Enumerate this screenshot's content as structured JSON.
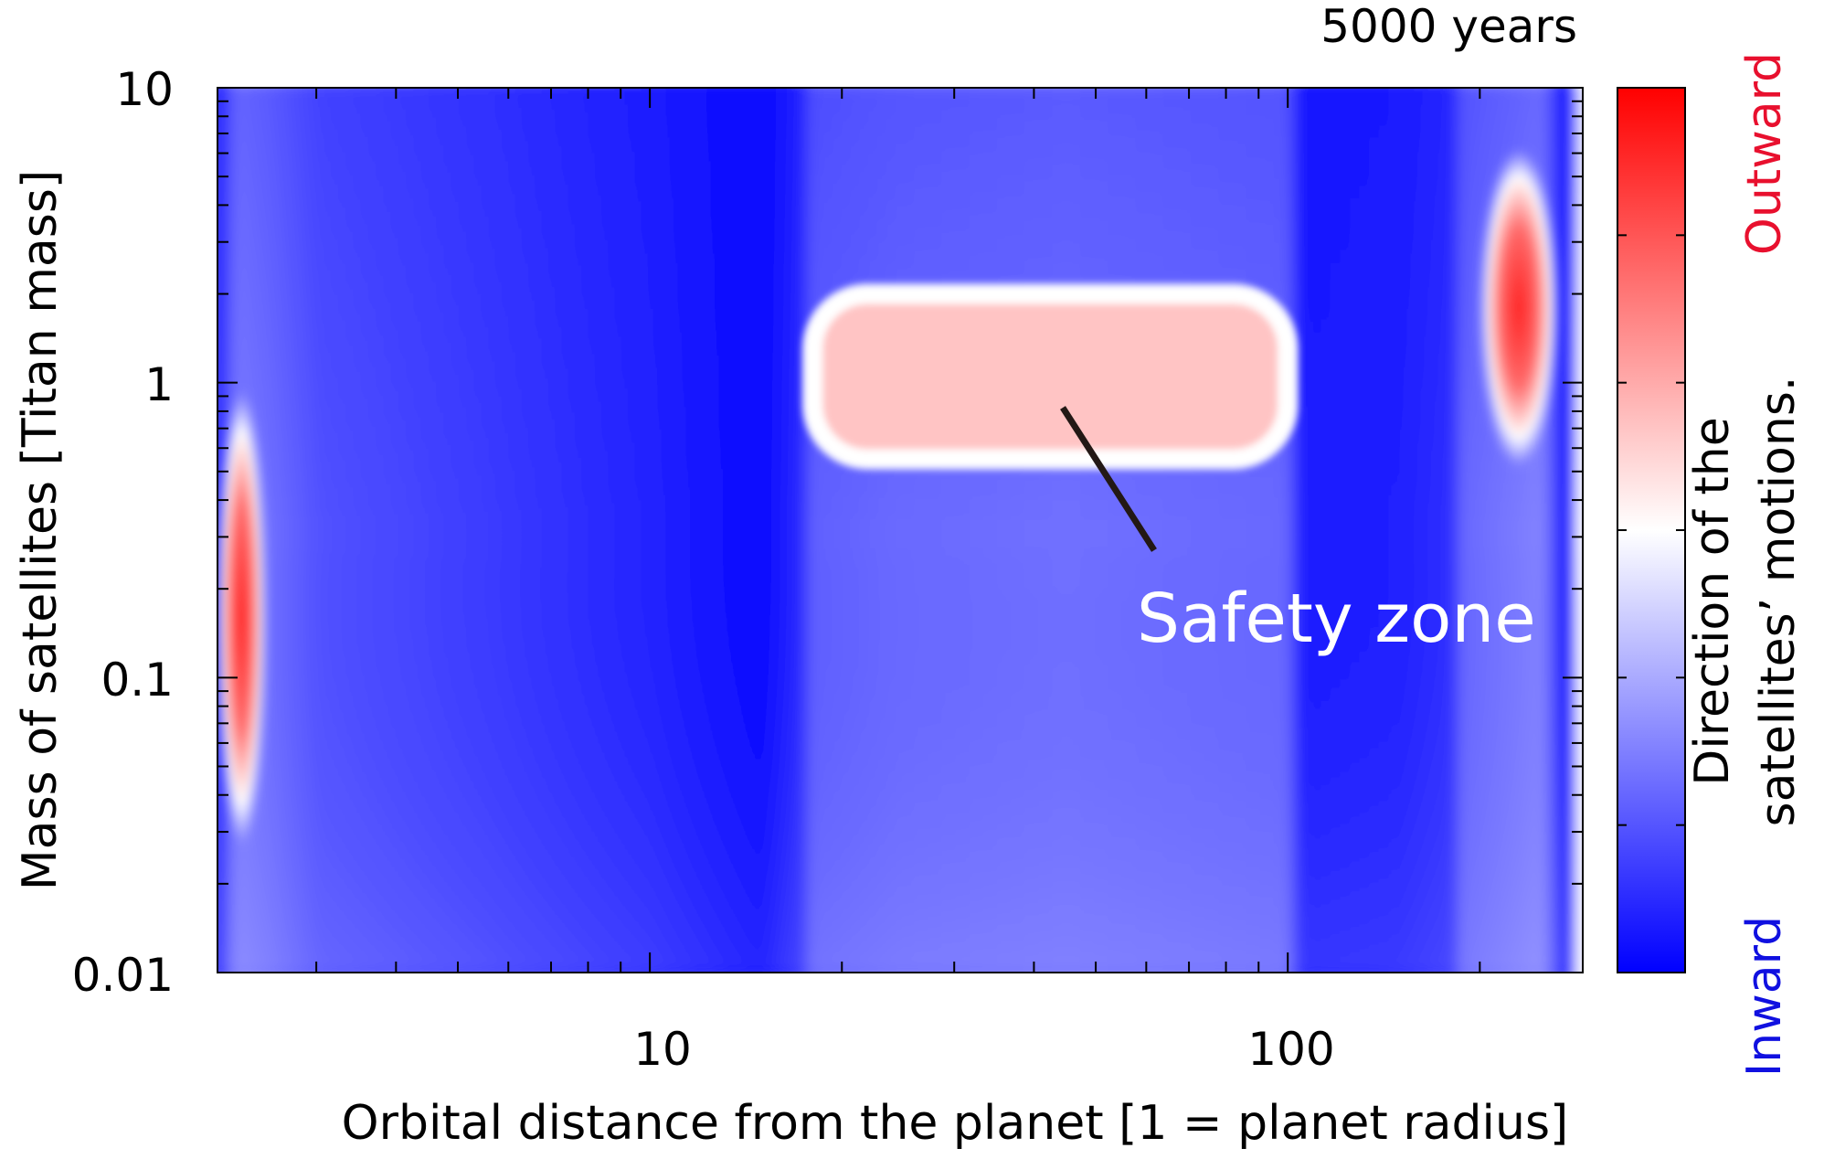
{
  "chart_data": {
    "type": "heatmap",
    "title": "5000 years",
    "xlabel": "Orbital distance from the planet [1 = planet radius]",
    "ylabel": "Mass of satellites [Titan mass]",
    "x_scale": "log",
    "y_scale": "log",
    "xlim": [
      2.1,
      290
    ],
    "ylim": [
      0.01,
      10
    ],
    "x_tick_labels": [
      "10",
      "100"
    ],
    "y_tick_labels": [
      "10",
      "1",
      "0.1",
      "0.01"
    ],
    "colorbar": {
      "label": "Direction of the satellites’ motions.",
      "label_lines": [
        "Direction of the",
        "satellites’ motions."
      ],
      "top_label": "Outward",
      "bottom_label": "Inward",
      "colors": [
        "#0000ff",
        "#ffffff",
        "#ff0000"
      ]
    },
    "annotation": "Safety zone",
    "regions": [
      {
        "direction": "outward",
        "x_range": [
          2.1,
          2.5
        ],
        "y_range": [
          0.02,
          0.7
        ],
        "peak_y": 0.16
      },
      {
        "direction": "outward",
        "x_range": [
          18,
          100
        ],
        "y_range": [
          0.55,
          2.0
        ]
      },
      {
        "direction": "outward",
        "x_range": [
          200,
          265
        ],
        "y_range": [
          0.5,
          6.0
        ],
        "peak_y": 1.8
      }
    ],
    "grid": false,
    "legend": "colorbar-right"
  },
  "colors": {
    "inward": "#0000ff",
    "neutral": "#ffffff",
    "outward": "#ff0000",
    "outward_label": "#e8102e",
    "inward_label": "#1010e0"
  }
}
